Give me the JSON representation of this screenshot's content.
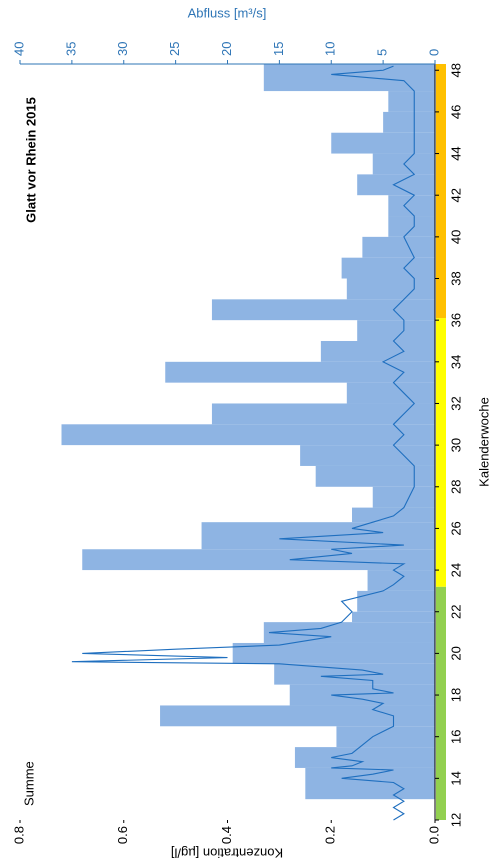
{
  "chart_data": {
    "type": "combo",
    "title": "Glatt vor Rhein 2015",
    "annotation": "Summe",
    "xlabel": "Kalenderwoche",
    "ylabel": "Konzentration [µg/l]",
    "y2label": "Abfluss [m³/s]",
    "xlim": [
      12,
      48.3
    ],
    "xticks": [
      12,
      14,
      16,
      18,
      20,
      22,
      24,
      26,
      28,
      30,
      32,
      34,
      36,
      38,
      40,
      42,
      44,
      46,
      48
    ],
    "ylim": [
      0,
      0.8
    ],
    "yticks": [
      {
        "value": 0,
        "label": "0.0"
      },
      0.2,
      0.4,
      0.6,
      0.8
    ],
    "y2lim": [
      0,
      40
    ],
    "y2ticks": [
      0,
      5,
      10,
      15,
      20,
      25,
      30,
      35,
      40
    ],
    "series": [
      {
        "type": "bar",
        "color": "#8eb4e3",
        "bins": [
          13,
          14.5,
          15.5,
          16.5,
          17.5,
          18.5,
          19.5,
          20.5,
          21.5,
          22,
          23,
          24,
          25,
          26.3,
          27,
          28,
          29,
          30,
          31,
          32,
          33,
          34,
          35,
          36,
          37,
          38,
          39,
          40,
          41,
          42,
          43,
          44,
          45,
          46,
          47,
          48.3
        ],
        "values": [
          0.25,
          0.27,
          0.19,
          0.53,
          0.28,
          0.31,
          0.39,
          0.33,
          0.16,
          0.15,
          0.13,
          0.68,
          0.45,
          0.16,
          0.12,
          0.23,
          0.26,
          0.72,
          0.43,
          0.17,
          0.52,
          0.22,
          0.15,
          0.43,
          0.17,
          0.18,
          0.14,
          0.09,
          0.09,
          0.15,
          0.12,
          0.2,
          0.1,
          0.09,
          0.33
        ]
      },
      {
        "type": "line",
        "axis": "y2",
        "color": "#1f6fbf",
        "x": [
          12.0,
          12.3,
          12.6,
          12.9,
          13.2,
          13.5,
          13.8,
          14.0,
          14.2,
          14.4,
          14.5,
          14.6,
          14.8,
          15.0,
          15.2,
          15.6,
          16.0,
          16.5,
          17.0,
          17.3,
          17.6,
          17.8,
          18.0,
          18.1,
          18.3,
          18.7,
          18.9,
          19.0,
          19.2,
          19.5,
          19.6,
          19.8,
          20.0,
          20.2,
          20.4,
          20.8,
          21.0,
          21.2,
          21.5,
          22.0,
          22.5,
          23.0,
          23.3,
          23.7,
          24.0,
          24.3,
          24.5,
          24.8,
          25.0,
          25.2,
          25.5,
          25.8,
          26.0,
          26.3,
          26.6,
          27,
          28,
          29,
          29.5,
          30,
          30.5,
          31,
          31.5,
          32,
          32.5,
          33,
          33.5,
          34,
          34.5,
          35,
          35.5,
          36,
          36.5,
          37,
          37.5,
          38,
          38.5,
          39,
          40,
          40.5,
          41,
          41.5,
          42,
          42.5,
          43,
          43.5,
          44,
          45,
          46,
          47,
          47.5,
          47.8,
          48.0,
          48.2
        ],
        "values": [
          4,
          3,
          4,
          3,
          4,
          3,
          4,
          9,
          6,
          4,
          10,
          8,
          7,
          10,
          8,
          7,
          6,
          4,
          4,
          6,
          5,
          7,
          10,
          4,
          6,
          6,
          11,
          5,
          7,
          15,
          35,
          20,
          34,
          25,
          15,
          10,
          16,
          11,
          9,
          8,
          9,
          5,
          4,
          3,
          4,
          3,
          14,
          8,
          10,
          3,
          15,
          5,
          8,
          6,
          4,
          3,
          2,
          2,
          3,
          4,
          3,
          4,
          3,
          2,
          3,
          4,
          3,
          5,
          3,
          4,
          3,
          3,
          4,
          3,
          2,
          2,
          3,
          2,
          3,
          2,
          2,
          3,
          2,
          4,
          2,
          3,
          2,
          2,
          2,
          2,
          3,
          10,
          5,
          4
        ]
      }
    ],
    "week_bands": [
      {
        "from": 12,
        "to": 23.2,
        "color": "#92d050"
      },
      {
        "from": 23.2,
        "to": 36.1,
        "color": "#ffff00"
      },
      {
        "from": 36.1,
        "to": 48.3,
        "color": "#ffc000"
      }
    ]
  }
}
